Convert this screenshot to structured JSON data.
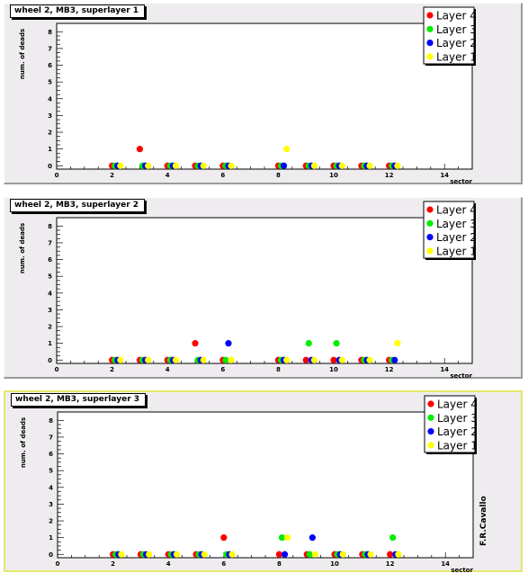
{
  "credit": "F.R.Cavallo",
  "colors": {
    "Layer 4": "#ff0000",
    "Layer 3": "#00ee00",
    "Layer 2": "#0000ff",
    "Layer 1": "#ffff00"
  },
  "chart_data": [
    {
      "type": "scatter",
      "title": "wheel 2, MB3, superlayer 1",
      "xlabel": "sector",
      "ylabel": "num. of deads",
      "xlim": [
        0,
        15
      ],
      "ylim": [
        -0.2,
        8.5
      ],
      "xticks": [
        "0",
        "2",
        "4",
        "6",
        "8",
        "10",
        "12",
        "14"
      ],
      "yticks": [
        "0",
        "1",
        "2",
        "3",
        "4",
        "5",
        "6",
        "7",
        "8"
      ],
      "legend": [
        "Layer 4",
        "Layer 3",
        "Layer 2",
        "Layer 1"
      ],
      "series": [
        {
          "name": "Layer 4",
          "x": [
            2,
            3,
            4,
            5,
            6,
            8,
            9,
            10,
            11,
            12
          ],
          "y": [
            0,
            1,
            0,
            0,
            0,
            0,
            0,
            0,
            0,
            0
          ]
        },
        {
          "name": "Layer 3",
          "x": [
            2,
            3,
            4,
            5,
            6,
            8,
            9,
            10,
            11,
            12
          ],
          "y": [
            0,
            0,
            0,
            0,
            0,
            0,
            0,
            0,
            0,
            0
          ]
        },
        {
          "name": "Layer 2",
          "x": [
            2,
            3,
            4,
            5,
            6,
            8,
            9,
            10,
            11,
            12
          ],
          "y": [
            0,
            0,
            0,
            0,
            0,
            0,
            0,
            0,
            0,
            0
          ]
        },
        {
          "name": "Layer 1",
          "x": [
            2,
            3,
            4,
            5,
            6,
            8,
            9,
            10,
            11,
            12
          ],
          "y": [
            0,
            0,
            0,
            0,
            0,
            1,
            0,
            0,
            0,
            0
          ]
        }
      ]
    },
    {
      "type": "scatter",
      "title": "wheel 2, MB3, superlayer 2",
      "xlabel": "sector",
      "ylabel": "num. of deads",
      "xlim": [
        0,
        15
      ],
      "ylim": [
        -0.2,
        8.5
      ],
      "xticks": [
        "0",
        "2",
        "4",
        "6",
        "8",
        "10",
        "12",
        "14"
      ],
      "yticks": [
        "0",
        "1",
        "2",
        "3",
        "4",
        "5",
        "6",
        "7",
        "8"
      ],
      "legend": [
        "Layer 4",
        "Layer 3",
        "Layer 2",
        "Layer 1"
      ],
      "series": [
        {
          "name": "Layer 4",
          "x": [
            2,
            3,
            4,
            5,
            6,
            8,
            9,
            10,
            11,
            12
          ],
          "y": [
            0,
            0,
            0,
            1,
            0,
            0,
            0,
            0,
            0,
            0
          ]
        },
        {
          "name": "Layer 3",
          "x": [
            2,
            3,
            4,
            5,
            6,
            8,
            9,
            10,
            11,
            12
          ],
          "y": [
            0,
            0,
            0,
            0,
            0,
            0,
            1,
            1,
            0,
            0
          ]
        },
        {
          "name": "Layer 2",
          "x": [
            2,
            3,
            4,
            5,
            6,
            8,
            9,
            10,
            11,
            12
          ],
          "y": [
            0,
            0,
            0,
            0,
            1,
            0,
            0,
            0,
            0,
            0
          ]
        },
        {
          "name": "Layer 1",
          "x": [
            2,
            3,
            4,
            5,
            6,
            8,
            9,
            10,
            11,
            12
          ],
          "y": [
            0,
            0,
            0,
            0,
            0,
            0,
            0,
            0,
            0,
            1
          ]
        }
      ]
    },
    {
      "type": "scatter",
      "title": "wheel 2, MB3, superlayer 3",
      "xlabel": "sector",
      "ylabel": "num. of deads",
      "xlim": [
        0,
        15
      ],
      "ylim": [
        -0.2,
        8.5
      ],
      "xticks": [
        "0",
        "2",
        "4",
        "6",
        "8",
        "10",
        "12",
        "14"
      ],
      "yticks": [
        "0",
        "1",
        "2",
        "3",
        "4",
        "5",
        "6",
        "7",
        "8"
      ],
      "legend": [
        "Layer 4",
        "Layer 3",
        "Layer 2",
        "Layer 1"
      ],
      "series": [
        {
          "name": "Layer 4",
          "x": [
            2,
            3,
            4,
            5,
            6,
            8,
            9,
            10,
            11,
            12
          ],
          "y": [
            0,
            0,
            0,
            0,
            1,
            0,
            0,
            0,
            0,
            0
          ]
        },
        {
          "name": "Layer 3",
          "x": [
            2,
            3,
            4,
            5,
            6,
            8,
            9,
            10,
            11,
            12
          ],
          "y": [
            0,
            0,
            0,
            0,
            0,
            1,
            0,
            0,
            0,
            1
          ]
        },
        {
          "name": "Layer 2",
          "x": [
            2,
            3,
            4,
            5,
            6,
            8,
            9,
            10,
            11,
            12
          ],
          "y": [
            0,
            0,
            0,
            0,
            0,
            0,
            1,
            0,
            0,
            0
          ]
        },
        {
          "name": "Layer 1",
          "x": [
            2,
            3,
            4,
            5,
            6,
            8,
            9,
            10,
            11,
            12
          ],
          "y": [
            0,
            0,
            0,
            0,
            0,
            1,
            0,
            0,
            0,
            0
          ]
        }
      ]
    }
  ]
}
